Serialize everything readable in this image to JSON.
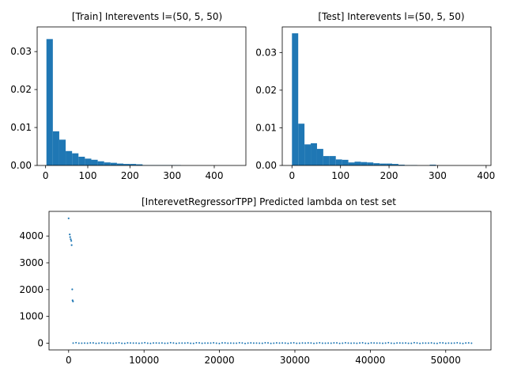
{
  "chart_data": [
    {
      "type": "bar",
      "title": "[Train] Interevents l=(50, 5, 50)",
      "xlabel": "",
      "ylabel": "",
      "xlim": [
        -20,
        475
      ],
      "ylim": [
        0,
        0.0365
      ],
      "x_ticks": [
        0,
        100,
        200,
        300,
        400
      ],
      "y_ticks": [
        0.0,
        0.01,
        0.02,
        0.03
      ],
      "x_tick_labels": [
        "0",
        "100",
        "200",
        "300",
        "400"
      ],
      "y_tick_labels": [
        "0.00",
        "0.01",
        "0.02",
        "0.03"
      ],
      "bin_width": 15.2,
      "bin_start": 2,
      "values": [
        0.0333,
        0.009,
        0.0068,
        0.0038,
        0.0032,
        0.0023,
        0.0018,
        0.0015,
        0.0011,
        0.0008,
        0.0007,
        0.0005,
        0.0004,
        0.0004,
        0.0003,
        0.0001,
        0.0001,
        0.0001,
        0.0001,
        0.0001,
        0.0001,
        0,
        0,
        0,
        0,
        0,
        0,
        0,
        0,
        0
      ],
      "color": "#1f77b4",
      "grid": false
    },
    {
      "type": "bar",
      "title": "[Test] Interevents l=(50, 5, 50)",
      "xlabel": "",
      "ylabel": "",
      "xlim": [
        -20,
        410
      ],
      "ylim": [
        0,
        0.0368
      ],
      "x_ticks": [
        0,
        100,
        200,
        300,
        400
      ],
      "y_ticks": [
        0.0,
        0.01,
        0.02,
        0.03
      ],
      "x_tick_labels": [
        "0",
        "100",
        "200",
        "300",
        "400"
      ],
      "y_tick_labels": [
        "0.00",
        "0.01",
        "0.02",
        "0.03"
      ],
      "bin_width": 12.9,
      "bin_start": 0,
      "values": [
        0.0351,
        0.0111,
        0.0056,
        0.0059,
        0.0044,
        0.0025,
        0.0025,
        0.0016,
        0.0015,
        0.0008,
        0.001,
        0.0009,
        0.0008,
        0.0006,
        0.0005,
        0.0005,
        0.0004,
        0.0002,
        0.0001,
        0.0001,
        0,
        0,
        0.0002,
        0,
        0,
        0,
        0,
        0,
        0,
        0
      ],
      "color": "#1f77b4",
      "grid": false
    },
    {
      "type": "scatter",
      "title": "[InterevetRegressorTPP] Predicted lambda on test set",
      "xlabel": "",
      "ylabel": "",
      "xlim": [
        -2600,
        56000
      ],
      "ylim": [
        -250,
        4920
      ],
      "x_ticks": [
        0,
        10000,
        20000,
        30000,
        40000,
        50000
      ],
      "y_ticks": [
        0,
        1000,
        2000,
        3000,
        4000
      ],
      "x_tick_labels": [
        "0",
        "10000",
        "20000",
        "30000",
        "40000",
        "50000"
      ],
      "y_tick_labels": [
        "0",
        "1000",
        "2000",
        "3000",
        "4000"
      ],
      "outliers": [
        [
          0,
          4660
        ],
        [
          150,
          4060
        ],
        [
          200,
          3960
        ],
        [
          280,
          3880
        ],
        [
          350,
          3820
        ],
        [
          400,
          3660
        ],
        [
          480,
          2010
        ],
        [
          520,
          1600
        ],
        [
          580,
          1560
        ]
      ],
      "baseline": {
        "x_start": 600,
        "x_end": 53500,
        "step": 380,
        "level": 5,
        "jitter": 14
      },
      "color": "#1f77b4",
      "grid": false
    }
  ]
}
